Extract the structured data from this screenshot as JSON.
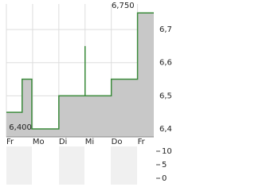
{
  "chart_data": [
    {
      "type": "line",
      "x": [
        0,
        0.6,
        0.6,
        0.97,
        0.97,
        2,
        2,
        3,
        3,
        3,
        3,
        4,
        4,
        5,
        5,
        5.62
      ],
      "series": [
        {
          "color": "#3a8a3a",
          "fill": "#c8c8c8",
          "values": [
            6.45,
            6.45,
            6.55,
            6.55,
            6.4,
            6.4,
            6.5,
            6.5,
            6.65,
            6.5,
            6.5,
            6.5,
            6.55,
            6.55,
            6.75,
            6.75
          ]
        }
      ],
      "xlim": [
        0,
        5.62
      ],
      "xticks": [
        {
          "value": 0,
          "label": "Fr"
        },
        {
          "value": 1,
          "label": "Mo"
        },
        {
          "value": 2,
          "label": "Di"
        },
        {
          "value": 3,
          "label": "Mi"
        },
        {
          "value": 4,
          "label": "Do"
        },
        {
          "value": 5,
          "label": "Fr"
        }
      ],
      "ylim": [
        6.376,
        6.777
      ],
      "yticks": [
        {
          "value": 6.4,
          "label": "6,4"
        },
        {
          "value": 6.5,
          "label": "6,5"
        },
        {
          "value": 6.6,
          "label": "6,6"
        },
        {
          "value": 6.7,
          "label": "6,7"
        }
      ],
      "annotations": [
        {
          "x": 5,
          "y": 6.75,
          "label": "6,750"
        },
        {
          "x": 0.97,
          "y": 6.4,
          "label": "6,400"
        }
      ],
      "grid": true
    },
    {
      "type": "bar",
      "ylim": [
        -2.35,
        11.76
      ],
      "yticks": [
        0,
        5,
        10
      ]
    }
  ]
}
